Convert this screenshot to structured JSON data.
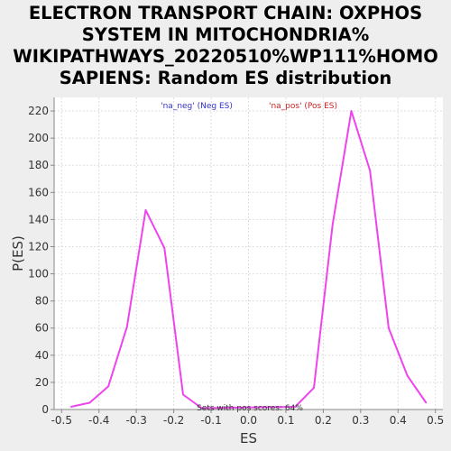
{
  "chart_data": {
    "type": "line",
    "title_lines": [
      "ELECTRON TRANSPORT CHAIN: OXPHOS",
      "SYSTEM IN MITOCHONDRIA%",
      "WIKIPATHWAYS_20220510%WP111%HOMO",
      "SAPIENS: Random ES distribution"
    ],
    "xlabel": "ES",
    "ylabel": "P(ES)",
    "xlim": [
      -0.52,
      0.52
    ],
    "ylim": [
      0,
      230
    ],
    "xticks": [
      -0.5,
      -0.4,
      -0.3,
      -0.2,
      -0.1,
      0.0,
      0.1,
      0.2,
      0.3,
      0.4,
      0.5
    ],
    "xtick_labels": [
      "-0.5",
      "-0.4",
      "-0.3",
      "-0.2",
      "-0.1",
      "0.0",
      "0.1",
      "0.2",
      "0.3",
      "0.4",
      "0.5"
    ],
    "yticks": [
      0,
      20,
      40,
      60,
      80,
      100,
      120,
      140,
      160,
      180,
      200,
      220
    ],
    "ytick_labels": [
      "0",
      "20",
      "40",
      "60",
      "80",
      "100",
      "120",
      "140",
      "160",
      "180",
      "200",
      "220"
    ],
    "grid": true,
    "legend": [
      {
        "label": "'na_neg' (Neg ES)",
        "color": "#3333cc"
      },
      {
        "label": "'na_pos' (Pos ES)",
        "color": "#cc2222"
      }
    ],
    "annotation": "Sets with pos scores: 64%",
    "line_color": "#ee44ee",
    "series": [
      {
        "x": [
          -0.475,
          -0.425,
          -0.375,
          -0.325,
          -0.275,
          -0.225,
          -0.175,
          -0.125,
          0.125,
          0.175,
          0.225,
          0.275,
          0.325,
          0.375,
          0.425,
          0.475
        ],
        "y": [
          2,
          5,
          17,
          61,
          147,
          119,
          11,
          1,
          2,
          16,
          136,
          220,
          176,
          60,
          25,
          5
        ]
      }
    ]
  }
}
